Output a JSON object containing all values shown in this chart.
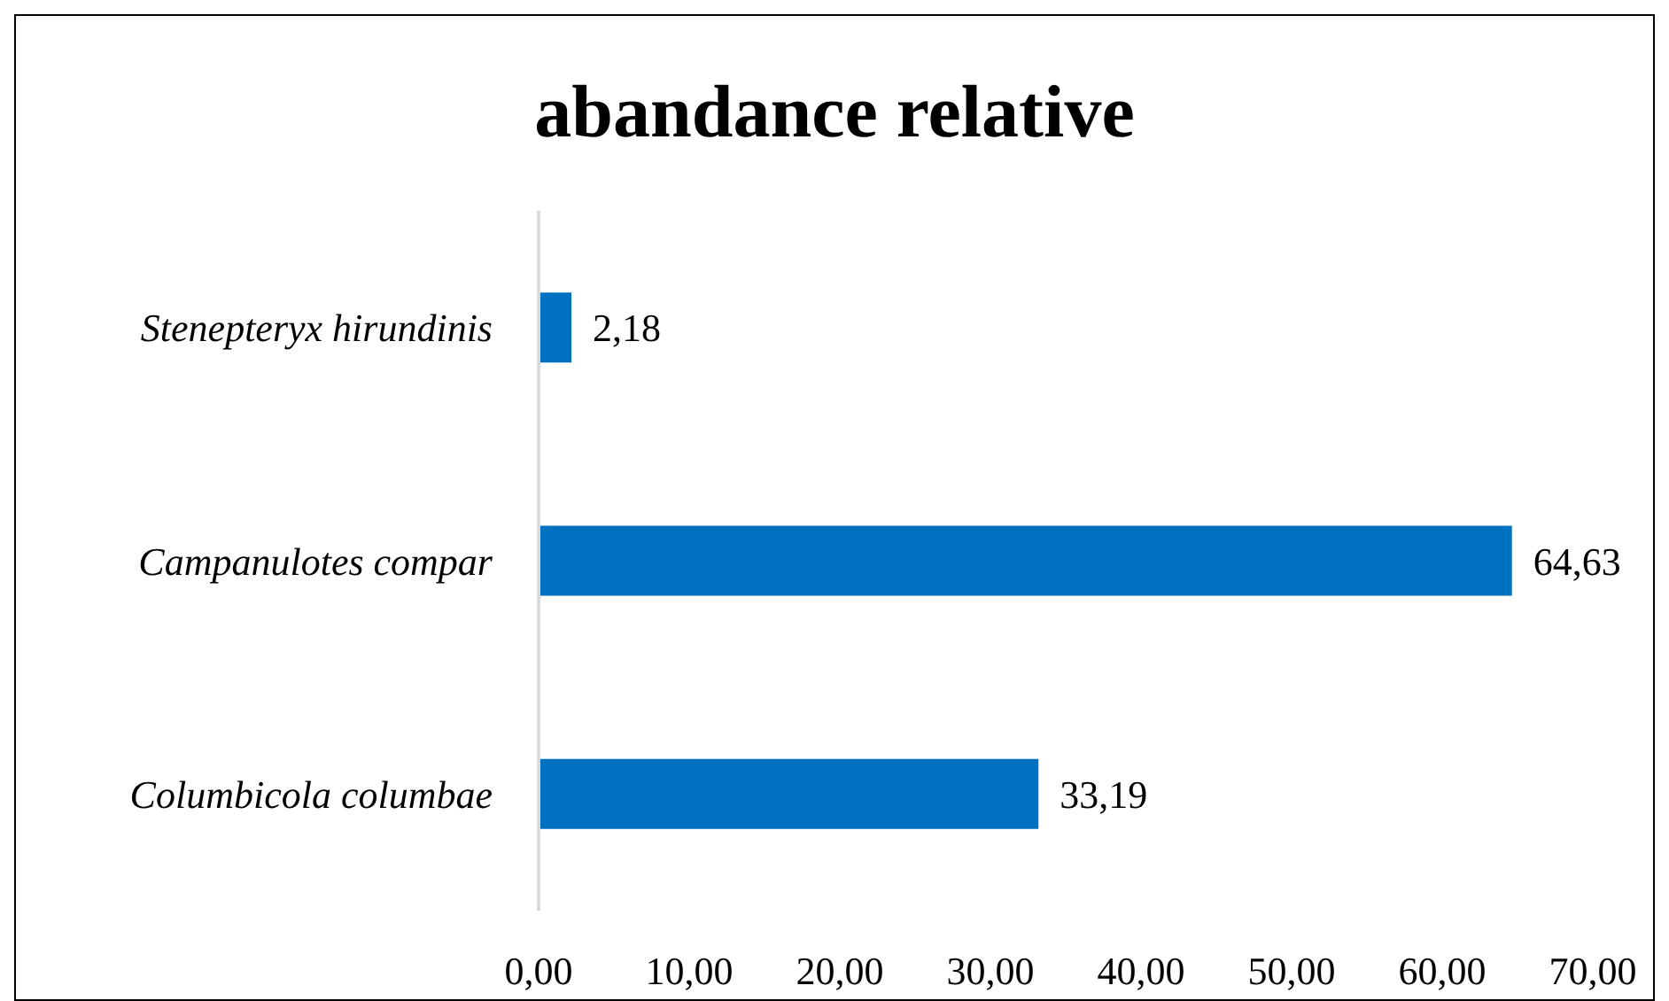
{
  "chart_data": {
    "type": "bar",
    "orientation": "horizontal",
    "title": "abandance relative",
    "categories": [
      "Stenepteryx hirundinis",
      "Campanulotes compar",
      "Columbicola columbae"
    ],
    "values": [
      2.18,
      64.63,
      33.19
    ],
    "color": "#0070c0",
    "value_labels": [
      "2,18",
      "64,63",
      "33,19"
    ],
    "xlim": [
      0,
      70
    ],
    "xticks": [
      {
        "value": 0,
        "label": "0,00"
      },
      {
        "value": 10,
        "label": "10,00"
      },
      {
        "value": 20,
        "label": "20,00"
      },
      {
        "value": 30,
        "label": "30,00"
      },
      {
        "value": 40,
        "label": "40,00"
      },
      {
        "value": 50,
        "label": "50,00"
      },
      {
        "value": 60,
        "label": "60,00"
      },
      {
        "value": 70,
        "label": "70,00"
      }
    ]
  }
}
